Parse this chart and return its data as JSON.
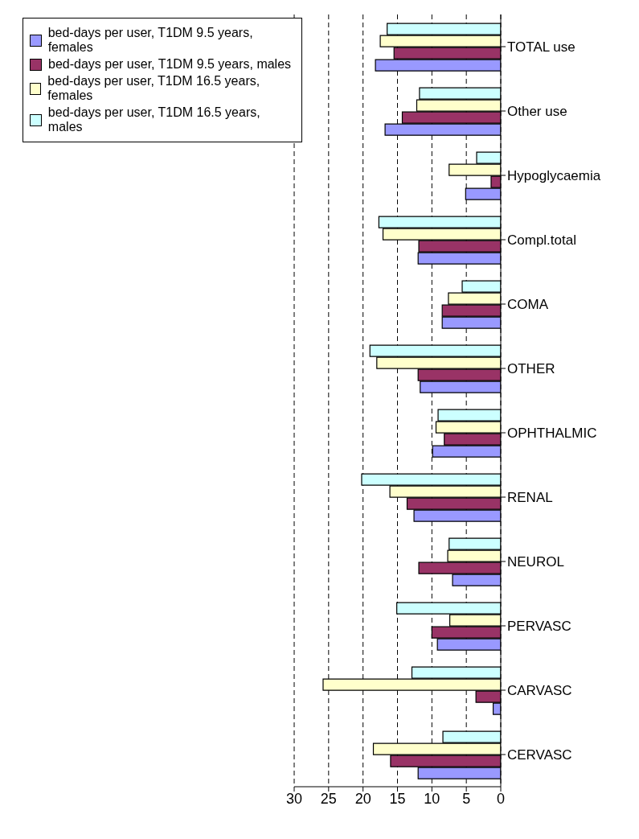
{
  "chart_data": {
    "type": "bar",
    "orientation": "horizontal",
    "categories": [
      "TOTAL use",
      "Other use",
      "Hypoglycaemia",
      "Compl.total",
      "COMA",
      "OTHER",
      "OPHTHALMIC",
      "RENAL",
      "NEUROL",
      "PERVASC",
      "CARVASC",
      "CERVASC"
    ],
    "series": [
      {
        "name": "bed-days per user, T1DM 9.5 years, females",
        "color": "#9999ff",
        "values": [
          18.2,
          16.8,
          5.1,
          12.0,
          8.5,
          11.7,
          9.9,
          12.6,
          7.0,
          9.2,
          1.1,
          12.0
        ]
      },
      {
        "name": "bed-days per user, T1DM 9.5 years, males",
        "color": "#993366",
        "values": [
          15.5,
          14.3,
          1.4,
          11.9,
          8.5,
          12.0,
          8.2,
          13.6,
          11.9,
          10.0,
          3.6,
          16.0
        ]
      },
      {
        "name": "bed-days per user, T1DM 16.5 years, females",
        "color": "#ffffcc",
        "values": [
          17.5,
          12.2,
          7.5,
          17.1,
          7.6,
          18.0,
          9.4,
          16.1,
          7.7,
          7.4,
          25.8,
          18.5
        ]
      },
      {
        "name": "bed-days per user, T1DM 16.5 years, males",
        "color": "#ccffff",
        "values": [
          16.5,
          11.8,
          3.5,
          17.7,
          5.6,
          19.0,
          9.1,
          20.2,
          7.5,
          15.1,
          12.9,
          8.4
        ]
      }
    ],
    "xlim": [
      30,
      0
    ],
    "xticks": [
      0,
      5,
      10,
      15,
      20,
      25,
      30
    ],
    "grid": "x",
    "legend": "top left"
  }
}
